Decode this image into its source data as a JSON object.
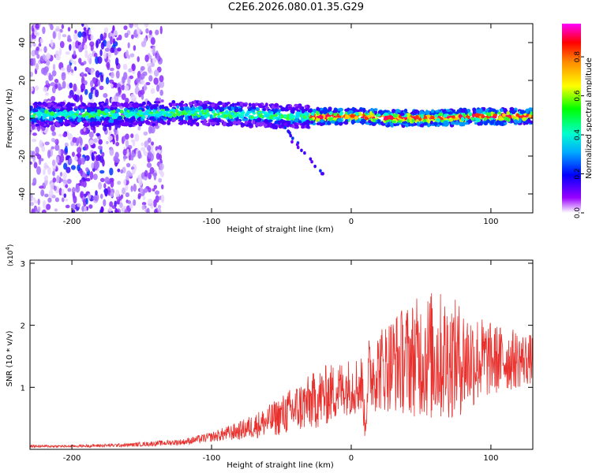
{
  "title": "C2E6.2026.080.01.35.G29",
  "chart_data": [
    {
      "type": "heatmap",
      "id": "spectrogram",
      "xlabel": "Height of straight line (km)",
      "ylabel": "Frequency (Hz)",
      "xlim": [
        -230,
        130
      ],
      "ylim": [
        -50,
        50
      ],
      "xticks": [
        -200,
        -100,
        0,
        100
      ],
      "yticks": [
        -40,
        -20,
        0,
        20,
        40
      ],
      "xtick_labels": [
        "-200",
        "-100",
        "0",
        "100"
      ],
      "ytick_labels": [
        "-40",
        "-20",
        "0",
        "20",
        "40"
      ],
      "colorbar": {
        "label": "Normalized spectral amplitude",
        "range": [
          0.0,
          0.97
        ],
        "ticks": [
          0.0,
          0.2,
          0.4,
          0.6,
          0.8
        ],
        "tick_labels": [
          "0.0",
          "0.2",
          "0.4",
          "0.6",
          "0.8"
        ],
        "colors": [
          "#ffffff",
          "#7a00ff",
          "#0000ff",
          "#00ffff",
          "#00ff00",
          "#ffff00",
          "#ff0000",
          "#ff00ff"
        ]
      },
      "band_center_hz": [
        [
          -230,
          2
        ],
        [
          -200,
          2
        ],
        [
          -160,
          2
        ],
        [
          -120,
          3
        ],
        [
          -80,
          2
        ],
        [
          -50,
          1
        ],
        [
          -30,
          1
        ],
        [
          0,
          1
        ],
        [
          10,
          1
        ],
        [
          30,
          0
        ],
        [
          60,
          0
        ],
        [
          90,
          1
        ],
        [
          130,
          1
        ]
      ],
      "peak_amplitude_region_km": [
        -30,
        130
      ]
    },
    {
      "type": "line",
      "id": "snr",
      "xlabel": "Height of straight line (km)",
      "ylabel": "SNR (10 * v/v)",
      "yscale_label": "(x10",
      "yscale_exponent": "4",
      "xlim": [
        -230,
        130
      ],
      "ylim": [
        0,
        3.05
      ],
      "xticks": [
        -200,
        -100,
        0,
        100
      ],
      "yticks": [
        1,
        2,
        3
      ],
      "xtick_labels": [
        "-200",
        "-100",
        "0",
        "100"
      ],
      "ytick_labels": [
        "1",
        "2",
        "3"
      ],
      "series": [
        {
          "name": "SNR",
          "color": "#e8302d",
          "envelope_x": [
            -230,
            -200,
            -160,
            -120,
            -100,
            -80,
            -60,
            -40,
            -20,
            -5,
            8,
            10,
            12,
            30,
            50,
            60,
            80,
            100,
            130
          ],
          "envelope_mean": [
            0.05,
            0.05,
            0.07,
            0.12,
            0.2,
            0.3,
            0.45,
            0.65,
            0.85,
            1.0,
            1.05,
            0.3,
            1.2,
            1.4,
            1.5,
            1.5,
            1.45,
            1.45,
            1.45
          ],
          "envelope_amp": [
            0.02,
            0.02,
            0.03,
            0.05,
            0.08,
            0.15,
            0.25,
            0.4,
            0.5,
            0.45,
            0.5,
            0.2,
            0.6,
            0.8,
            1.0,
            1.1,
            0.9,
            0.6,
            0.4
          ]
        }
      ]
    }
  ]
}
